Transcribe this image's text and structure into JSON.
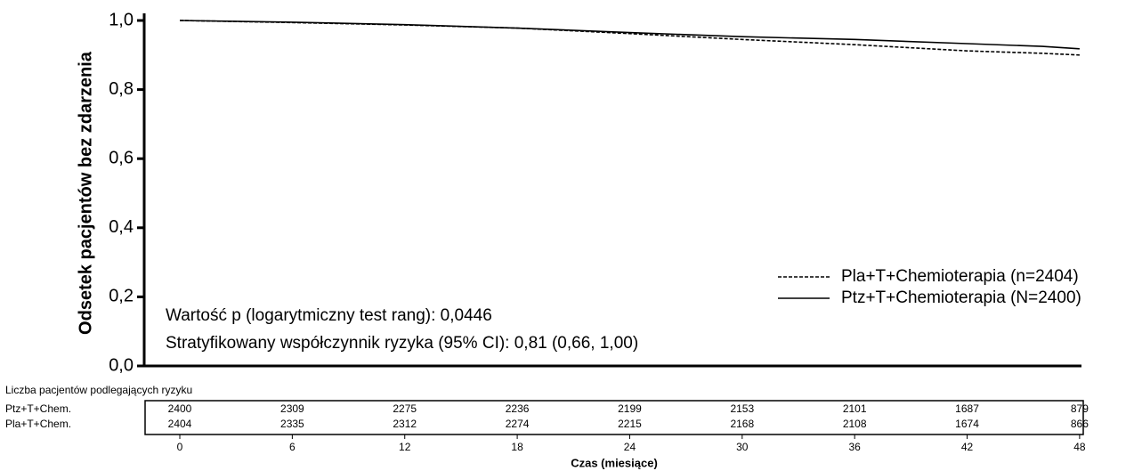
{
  "chart_data": {
    "type": "line",
    "y_label": "Odsetek pacjentów bez zdarzenia",
    "x_label": "Czas (miesiące)",
    "annotations": [
      "Wartość p (logarytmiczny test rang): 0,0446",
      "Stratyfikowany współczynnik ryzyka (95% CI): 0,81 (0,66, 1,00)"
    ],
    "x": [
      0,
      6,
      12,
      18,
      24,
      30,
      36,
      42,
      46,
      48
    ],
    "series": [
      {
        "name": "Pla+T+Chemioterapia (n=2404)",
        "color": "#000000",
        "dashed": true,
        "values": [
          1.0,
          0.994,
          0.987,
          0.978,
          0.962,
          0.945,
          0.93,
          0.912,
          0.905,
          0.9
        ]
      },
      {
        "name": "Ptz+T+Chemioterapia (N=2400)",
        "color": "#000000",
        "dashed": false,
        "values": [
          1.0,
          0.995,
          0.988,
          0.978,
          0.965,
          0.953,
          0.945,
          0.933,
          0.925,
          0.918
        ]
      }
    ],
    "xlim": [
      -1.9,
      48.1
    ],
    "ylim": [
      0,
      1
    ],
    "xticks": [
      0,
      6,
      12,
      18,
      24,
      30,
      36,
      42,
      48
    ],
    "yticks": [
      {
        "value": 0,
        "label": "0,0"
      },
      {
        "value": 0.2,
        "label": "0,2"
      },
      {
        "value": 0.4,
        "label": "0,4"
      },
      {
        "value": 0.6,
        "label": "0,6"
      },
      {
        "value": 0.8,
        "label": "0,8"
      },
      {
        "value": 1,
        "label": "1,0"
      }
    ],
    "grid": false,
    "legend": "lower right",
    "risk_table": {
      "title": "Liczba pacjentów podlegających ryzyku",
      "rows": [
        {
          "label": "Ptz+T+Chem.",
          "values": [
            2400,
            2309,
            2275,
            2236,
            2199,
            2153,
            2101,
            1687,
            879
          ]
        },
        {
          "label": "Pla+T+Chem.",
          "values": [
            2404,
            2335,
            2312,
            2274,
            2215,
            2168,
            2108,
            1674,
            866
          ]
        }
      ]
    }
  }
}
